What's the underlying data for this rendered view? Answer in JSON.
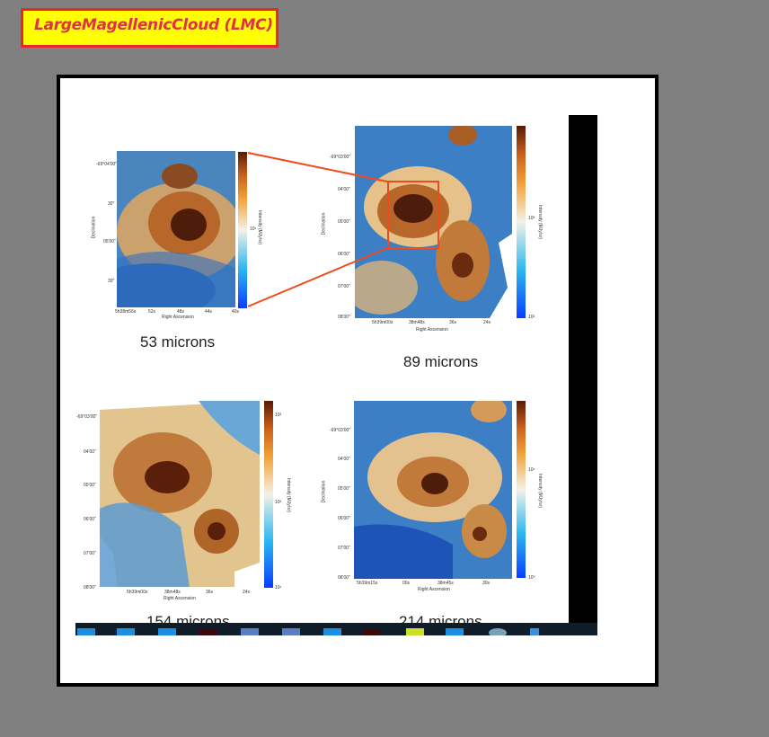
{
  "header": {
    "title": "LargeMagellenicCloud (LMC)"
  },
  "panels": [
    {
      "caption": "53 microns",
      "ra_ticks": [
        "5h38m56s",
        "52s",
        "48s",
        "44s",
        "40s"
      ],
      "dec_ticks": [
        "-69°04'00\"",
        "30\"",
        "05'00\"",
        "30\""
      ],
      "cbar_ticks": [
        "10¹"
      ],
      "xlabel": "Right Ascension",
      "ylabel": "Declination",
      "cbar_label": "Intensity (MJy/sr)"
    },
    {
      "caption": "89 microns",
      "ra_ticks": [
        "5h39m00s",
        "38m48s",
        "36s",
        "24s"
      ],
      "dec_ticks": [
        "-69°03'00\"",
        "04'00\"",
        "05'00\"",
        "06'00\"",
        "07'00\"",
        "08'00\""
      ],
      "cbar_ticks": [
        "10²",
        "10³"
      ],
      "xlabel": "Right Ascension",
      "ylabel": "Declination",
      "cbar_label": "Intensity (MJy/sr)"
    },
    {
      "caption": "154 microns",
      "ra_ticks": [
        "5h39m00s",
        "38m48s",
        "36s",
        "24s"
      ],
      "dec_ticks": [
        "-69°03'00\"",
        "04'00\"",
        "05'00\"",
        "06'00\"",
        "07'00\"",
        "08'00\""
      ],
      "cbar_ticks": [
        "10³",
        "10²",
        "10¹"
      ],
      "xlabel": "Right Ascension",
      "ylabel": "Declination",
      "cbar_label": "Intensity (MJy/sr)"
    },
    {
      "caption": "214 microns",
      "ra_ticks": [
        "5h39m15s",
        "00s",
        "38m45s",
        "30s"
      ],
      "dec_ticks": [
        "-69°03'00\"",
        "04'00\"",
        "05'00\"",
        "06'00\"",
        "07'00\"",
        "08'00\""
      ],
      "cbar_ticks": [
        "10¹",
        "10⁰"
      ],
      "xlabel": "Right Ascension",
      "ylabel": "Declination",
      "cbar_label": "Intensity (MJy/sr)"
    }
  ],
  "colors": {
    "title_bg": "#ffff00",
    "title_border": "#e8262b",
    "title_text": "#e0304a",
    "zoom_box": "#f04a1c",
    "taskbar_bg": "#0e1d29"
  },
  "taskbar": {
    "icons": [
      "folder-icon",
      "folder-icon",
      "folder-icon",
      "media-icon",
      "window-icon",
      "window-icon",
      "folder-icon",
      "media-icon",
      "app-icon",
      "folder-icon",
      "globe-icon",
      "tool-icon"
    ]
  }
}
